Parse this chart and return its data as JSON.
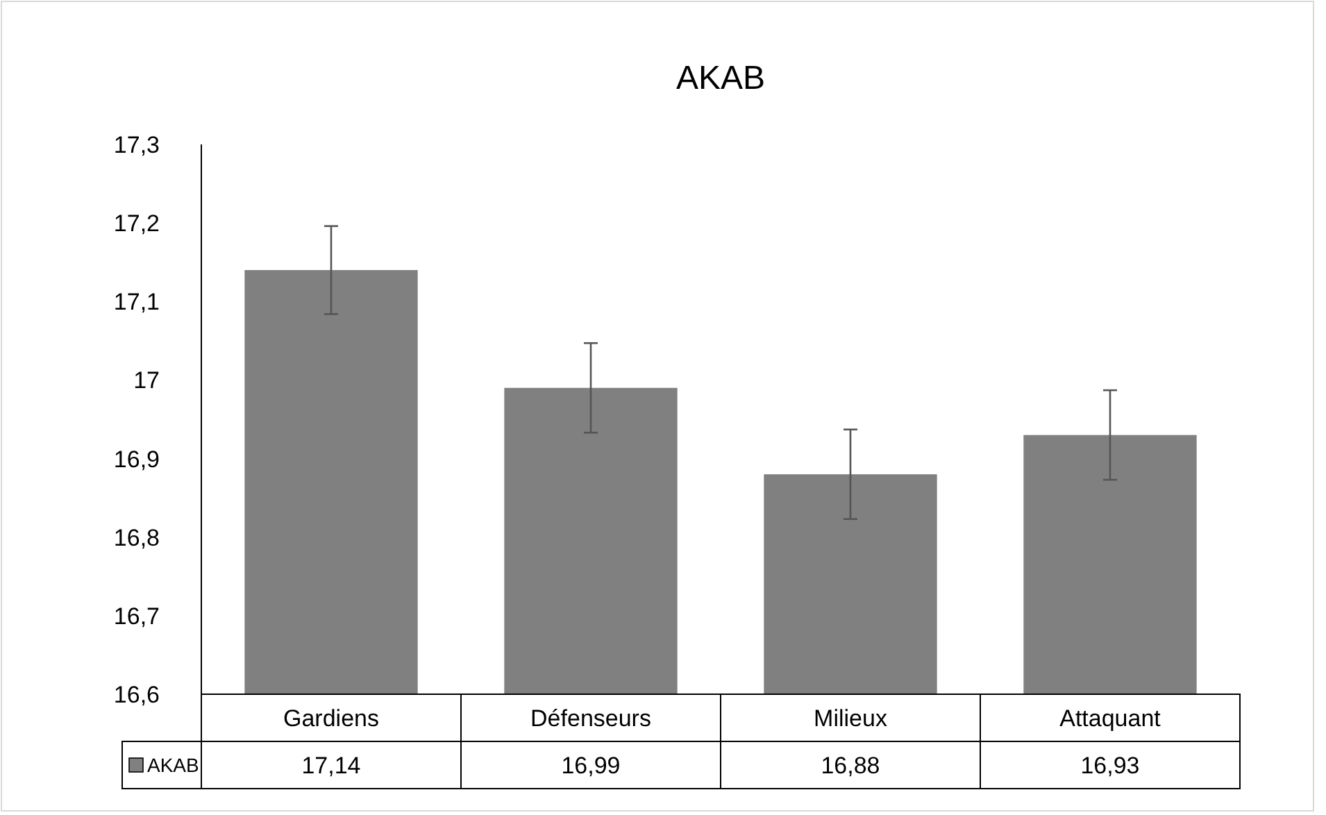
{
  "chart_data": {
    "type": "bar",
    "title": "AKAB",
    "categories": [
      "Gardiens",
      "Défenseurs",
      "Milieux",
      "Attaquant"
    ],
    "series": [
      {
        "name": "AKAB",
        "color": "#808080",
        "values": [
          17.14,
          16.99,
          16.88,
          16.93
        ],
        "errors": [
          0.056,
          0.057,
          0.057,
          0.057
        ],
        "value_labels": [
          "17,14",
          "16,99",
          "16,88",
          "16,93"
        ]
      }
    ],
    "ylim": [
      16.6,
      17.3
    ],
    "yticks": [
      {
        "value": 16.6,
        "label": "16,6"
      },
      {
        "value": 16.7,
        "label": "16,7"
      },
      {
        "value": 16.8,
        "label": "16,8"
      },
      {
        "value": 16.9,
        "label": "16,9"
      },
      {
        "value": 17,
        "label": "17"
      },
      {
        "value": 17.1,
        "label": "17,1"
      },
      {
        "value": 17.2,
        "label": "17,2"
      },
      {
        "value": 17.3,
        "label": "17,3"
      }
    ],
    "grid": false,
    "legend": "bottom left"
  }
}
